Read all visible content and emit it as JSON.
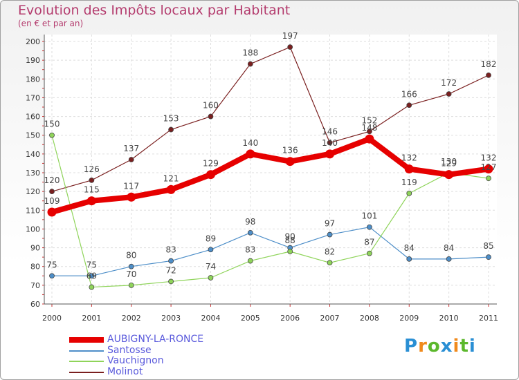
{
  "title": "Evolution des Impôts locaux par Habitant",
  "subtitle": "(en € et par an)",
  "logo": {
    "text": "Proxiti",
    "letters": [
      {
        "ch": "P",
        "color": "#2a8fd4"
      },
      {
        "ch": "r",
        "color": "#f08a1c"
      },
      {
        "ch": "o",
        "color": "#5cb82c"
      },
      {
        "ch": "x",
        "color": "#2a8fd4"
      },
      {
        "ch": "i",
        "color": "#f08a1c"
      },
      {
        "ch": "t",
        "color": "#5cb82c"
      },
      {
        "ch": "i",
        "color": "#2a8fd4"
      }
    ]
  },
  "chart_data": {
    "type": "line",
    "title": "Evolution des Impôts locaux par Habitant",
    "subtitle": "(en € et par an)",
    "xlabel": "",
    "ylabel": "",
    "x": [
      "2000",
      "2001",
      "2002",
      "2003",
      "2004",
      "2005",
      "2006",
      "2007",
      "2008",
      "2009",
      "2010",
      "2011"
    ],
    "ylim": [
      60,
      200
    ],
    "yticks": [
      60,
      70,
      80,
      90,
      100,
      110,
      120,
      130,
      140,
      150,
      160,
      170,
      180,
      190,
      200
    ],
    "grid": true,
    "legend": "bottom-left",
    "series": [
      {
        "name": "AUBIGNY-LA-RONCE",
        "color": "#e60000",
        "values": [
          109,
          115,
          117,
          121,
          129,
          140,
          136,
          140,
          148,
          132,
          129,
          132
        ],
        "labels": [
          "109",
          "115",
          "117",
          "121",
          "129",
          "140",
          "136",
          "140",
          "148",
          "132",
          "129",
          "132"
        ]
      },
      {
        "name": "Santosse",
        "color": "#4d8ec8",
        "values": [
          75,
          75,
          80,
          83,
          89,
          98,
          90,
          97,
          101,
          84,
          84,
          85
        ],
        "labels": [
          "75",
          "75",
          "80",
          "83",
          "89",
          "98",
          "90",
          "97",
          "101",
          "84",
          "84",
          "85"
        ]
      },
      {
        "name": "Vauchignon",
        "color": "#8fd45a",
        "values": [
          150,
          69,
          70,
          72,
          74,
          83,
          88,
          82,
          87,
          119,
          130,
          127
        ],
        "labels": [
          "150",
          "69",
          "70",
          "72",
          "74",
          "83",
          "88",
          "82",
          "87",
          "119",
          "130",
          "127"
        ]
      },
      {
        "name": "Molinot",
        "color": "#7a1f1f",
        "values": [
          120,
          126,
          137,
          153,
          160,
          188,
          197,
          146,
          152,
          166,
          172,
          182
        ],
        "labels": [
          "120",
          "126",
          "137",
          "153",
          "160",
          "188",
          "197",
          "146",
          "152",
          "166",
          "172",
          "182"
        ]
      }
    ]
  }
}
